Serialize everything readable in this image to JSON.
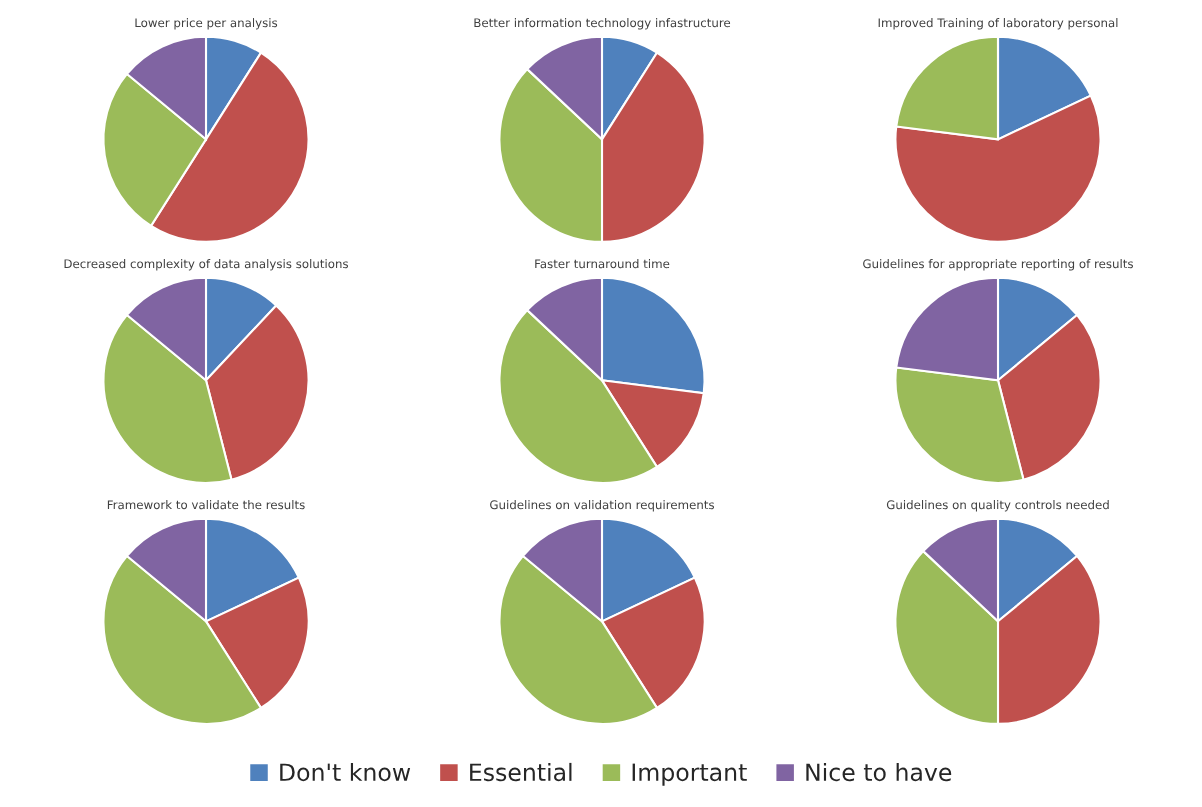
{
  "chart_data": [
    {
      "type": "pie",
      "title": "Lower price per analysis",
      "values": [
        9,
        50,
        27,
        14
      ],
      "colors": [
        "#4f81bd",
        "#c0504d",
        "#9bbb59",
        "#8064a2"
      ]
    },
    {
      "type": "pie",
      "title": "Better information technology infastructure",
      "values": [
        9,
        41,
        37,
        13
      ],
      "colors": [
        "#4f81bd",
        "#c0504d",
        "#9bbb59",
        "#8064a2"
      ]
    },
    {
      "type": "pie",
      "title": "Improved Training of laboratory personal",
      "values": [
        18,
        59,
        23,
        0
      ],
      "colors": [
        "#4f81bd",
        "#c0504d",
        "#9bbb59",
        "#8064a2"
      ]
    },
    {
      "type": "pie",
      "title": "Decreased complexity of data analysis solutions",
      "values": [
        12,
        34,
        40,
        14
      ],
      "colors": [
        "#4f81bd",
        "#c0504d",
        "#9bbb59",
        "#8064a2"
      ]
    },
    {
      "type": "pie",
      "title": "Faster turnaround time",
      "values": [
        27,
        14,
        46,
        13
      ],
      "colors": [
        "#4f81bd",
        "#c0504d",
        "#9bbb59",
        "#8064a2"
      ]
    },
    {
      "type": "pie",
      "title": "Guidelines for appropriate reporting of results",
      "values": [
        14,
        32,
        31,
        23
      ],
      "colors": [
        "#4f81bd",
        "#c0504d",
        "#9bbb59",
        "#8064a2"
      ]
    },
    {
      "type": "pie",
      "title": "Framework to validate the results",
      "values": [
        18,
        23,
        45,
        14
      ],
      "colors": [
        "#4f81bd",
        "#c0504d",
        "#9bbb59",
        "#8064a2"
      ]
    },
    {
      "type": "pie",
      "title": "Guidelines on validation requirements",
      "values": [
        18,
        23,
        45,
        14
      ],
      "colors": [
        "#4f81bd",
        "#c0504d",
        "#9bbb59",
        "#8064a2"
      ]
    },
    {
      "type": "pie",
      "title": "Guidelines on quality controls needed",
      "categories": [
        "Don't know",
        "Essential",
        "Important",
        "Nice to have"
      ],
      "values": [
        14,
        36,
        37,
        13
      ],
      "colors": [
        "#4f81bd",
        "#c0504d",
        "#9bbb59",
        "#8064a2"
      ],
      "legend": "bottom"
    }
  ]
}
